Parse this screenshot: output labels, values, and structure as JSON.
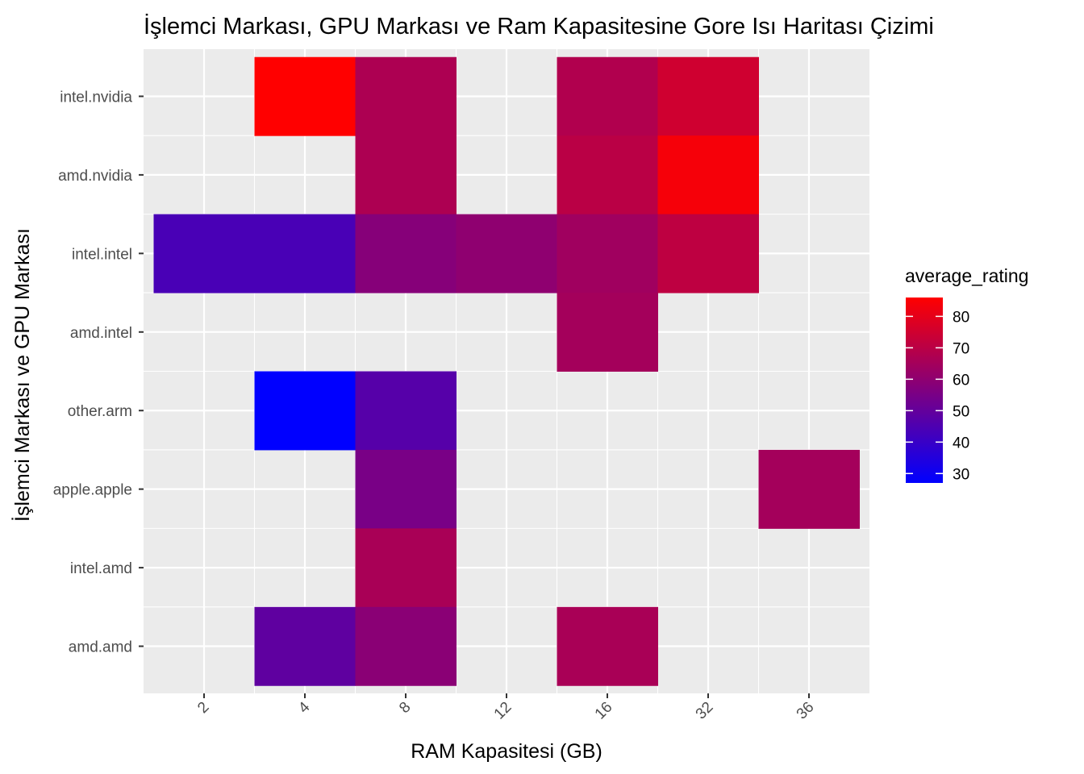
{
  "chart_data": {
    "type": "heatmap",
    "title": "İşlemci Markası, GPU Markası ve Ram Kapasitesine Gore Isı Haritası Çizimi",
    "xlabel": "RAM Kapasitesi (GB)",
    "ylabel": "İşlemci Markası ve GPU Markası",
    "x_categories": [
      "2",
      "4",
      "8",
      "12",
      "16",
      "32",
      "36"
    ],
    "y_categories": [
      "intel.nvidia",
      "amd.nvidia",
      "intel.intel",
      "amd.intel",
      "other.arm",
      "apple.apple",
      "intel.amd",
      "amd.amd"
    ],
    "grid": true,
    "legend": {
      "title": "average_rating",
      "position": "right",
      "ticks": [
        30,
        40,
        50,
        60,
        70,
        80
      ],
      "range": [
        27,
        86
      ],
      "low_color": "#0000ff",
      "high_color": "#ff0000"
    },
    "cells": [
      {
        "x": "4",
        "y": "intel.nvidia",
        "value": 86
      },
      {
        "x": "8",
        "y": "intel.nvidia",
        "value": 67
      },
      {
        "x": "16",
        "y": "intel.nvidia",
        "value": 68
      },
      {
        "x": "32",
        "y": "intel.nvidia",
        "value": 75
      },
      {
        "x": "8",
        "y": "amd.nvidia",
        "value": 67
      },
      {
        "x": "16",
        "y": "amd.nvidia",
        "value": 70
      },
      {
        "x": "32",
        "y": "amd.nvidia",
        "value": 84
      },
      {
        "x": "2",
        "y": "intel.intel",
        "value": 44
      },
      {
        "x": "4",
        "y": "intel.intel",
        "value": 44
      },
      {
        "x": "8",
        "y": "intel.intel",
        "value": 58
      },
      {
        "x": "12",
        "y": "intel.intel",
        "value": 60
      },
      {
        "x": "16",
        "y": "intel.intel",
        "value": 64
      },
      {
        "x": "32",
        "y": "intel.intel",
        "value": 71
      },
      {
        "x": "16",
        "y": "amd.intel",
        "value": 65
      },
      {
        "x": "4",
        "y": "other.arm",
        "value": 27
      },
      {
        "x": "8",
        "y": "other.arm",
        "value": 47
      },
      {
        "x": "8",
        "y": "apple.apple",
        "value": 55
      },
      {
        "x": "36",
        "y": "apple.apple",
        "value": 65
      },
      {
        "x": "8",
        "y": "intel.amd",
        "value": 66
      },
      {
        "x": "4",
        "y": "amd.amd",
        "value": 49
      },
      {
        "x": "8",
        "y": "amd.amd",
        "value": 59
      },
      {
        "x": "16",
        "y": "amd.amd",
        "value": 66
      }
    ]
  }
}
